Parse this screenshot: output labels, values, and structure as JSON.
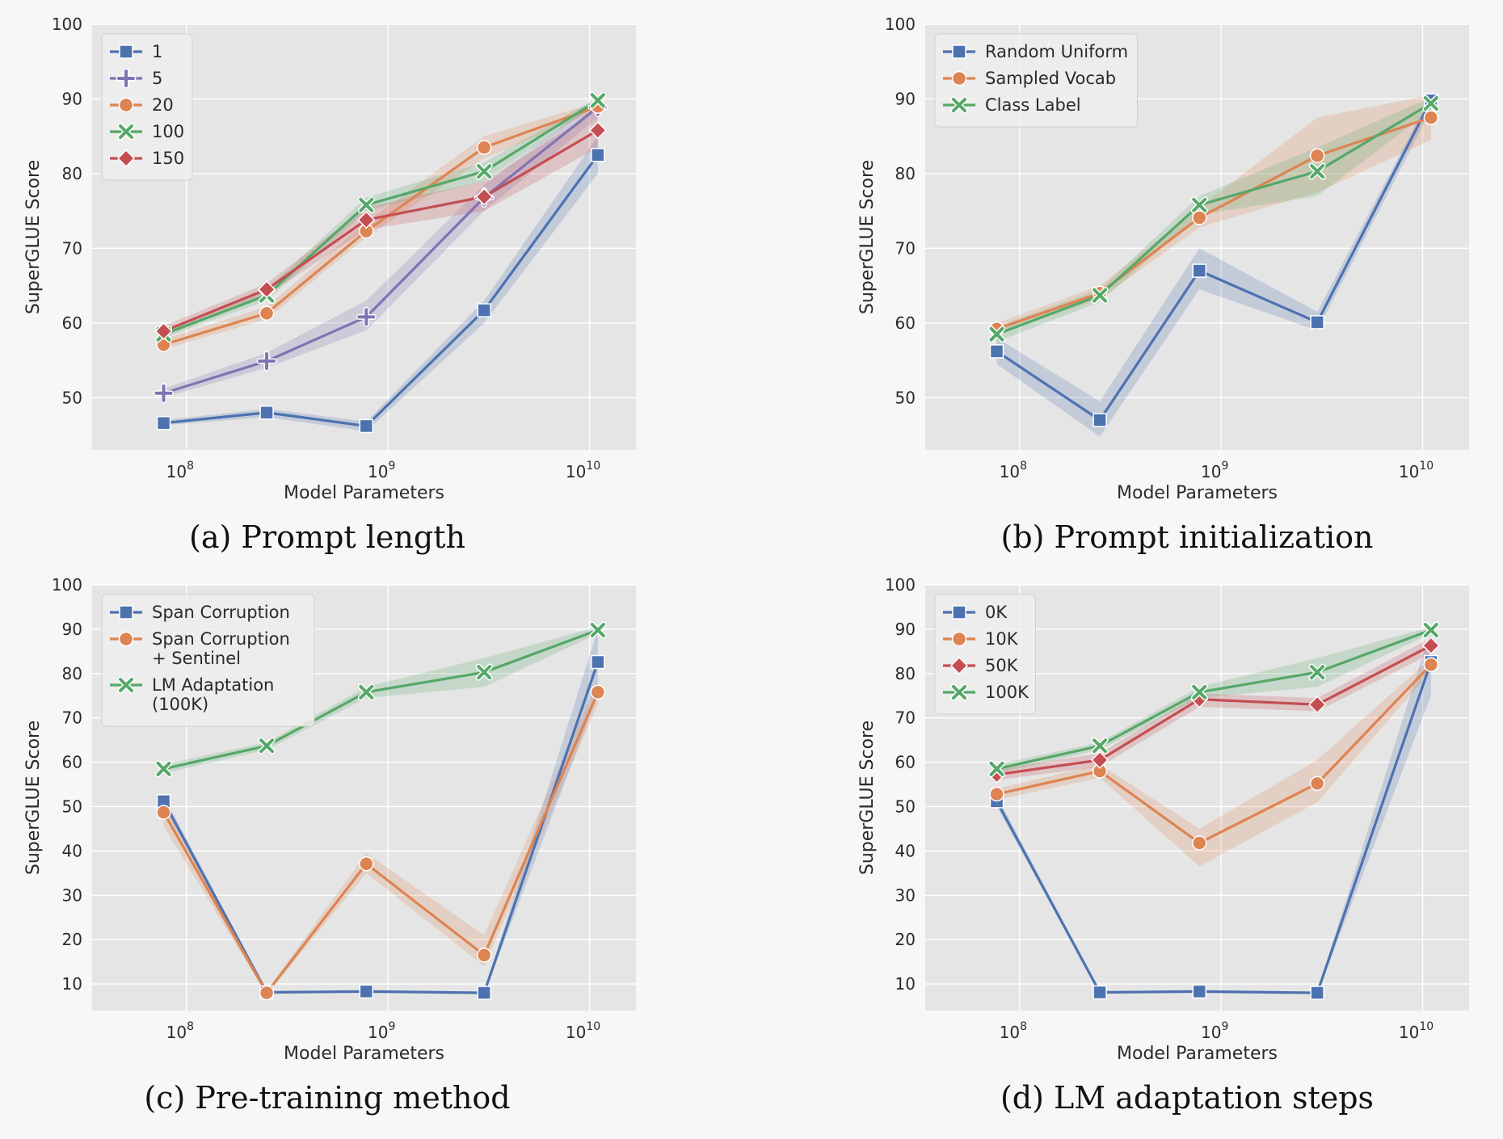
{
  "chart_data": [
    {
      "type": "line",
      "caption": "(a) Prompt length",
      "xlabel": "Model Parameters",
      "ylabel": "SuperGLUE Score",
      "xscale": "log",
      "x": [
        77000000,
        250000000,
        780000000,
        3000000000,
        11000000000
      ],
      "xticks": [
        {
          "value": 100000000,
          "base": "10",
          "exp": "8"
        },
        {
          "value": 1000000000,
          "base": "10",
          "exp": "9"
        },
        {
          "value": 10000000000,
          "base": "10",
          "exp": "10"
        }
      ],
      "ylim": [
        43,
        100
      ],
      "yticks": [
        50,
        60,
        70,
        80,
        90,
        100
      ],
      "grid": true,
      "legend": "top-left",
      "series": [
        {
          "name": "1",
          "color": "#4c72b0",
          "marker": "square",
          "values": [
            46.6,
            48.0,
            46.2,
            61.7,
            82.5
          ],
          "band": [
            [
              46.3,
              47.0
            ],
            [
              47.4,
              48.5
            ],
            [
              45.5,
              46.8
            ],
            [
              60.0,
              63.0
            ],
            [
              80.0,
              85.0
            ]
          ]
        },
        {
          "name": "5",
          "color": "#8172b3",
          "marker": "plus",
          "values": [
            50.6,
            54.9,
            60.8,
            76.8,
            88.9
          ],
          "band": [
            [
              50.0,
              51.2
            ],
            [
              54.0,
              56.0
            ],
            [
              59.0,
              63.0
            ],
            [
              75.0,
              78.5
            ],
            [
              87.5,
              90.0
            ]
          ]
        },
        {
          "name": "20",
          "color": "#dd8452",
          "marker": "circle",
          "values": [
            57.1,
            61.3,
            72.3,
            83.5,
            89.0
          ],
          "band": [
            [
              56.5,
              57.8
            ],
            [
              60.5,
              62.2
            ],
            [
              71.5,
              73.5
            ],
            [
              82.0,
              85.0
            ],
            [
              88.5,
              89.6
            ]
          ]
        },
        {
          "name": "100",
          "color": "#55a868",
          "marker": "x",
          "values": [
            58.5,
            63.7,
            75.8,
            80.3,
            89.8
          ],
          "band": [
            [
              58.0,
              59.0
            ],
            [
              63.0,
              64.5
            ],
            [
              75.0,
              76.8
            ],
            [
              79.0,
              81.5
            ],
            [
              89.4,
              90.2
            ]
          ]
        },
        {
          "name": "150",
          "color": "#c44e52",
          "marker": "diamond",
          "values": [
            58.9,
            64.5,
            73.8,
            76.9,
            85.8
          ],
          "band": [
            [
              58.2,
              59.6
            ],
            [
              63.7,
              65.3
            ],
            [
              72.5,
              75.5
            ],
            [
              75.0,
              79.0
            ],
            [
              83.5,
              88.5
            ]
          ]
        }
      ]
    },
    {
      "type": "line",
      "caption": "(b) Prompt initialization",
      "xlabel": "Model Parameters",
      "ylabel": "SuperGLUE Score",
      "xscale": "log",
      "x": [
        77000000,
        250000000,
        780000000,
        3000000000,
        11000000000
      ],
      "xticks": [
        {
          "value": 100000000,
          "base": "10",
          "exp": "8"
        },
        {
          "value": 1000000000,
          "base": "10",
          "exp": "9"
        },
        {
          "value": 10000000000,
          "base": "10",
          "exp": "10"
        }
      ],
      "ylim": [
        43,
        100
      ],
      "yticks": [
        50,
        60,
        70,
        80,
        90,
        100
      ],
      "grid": true,
      "legend": "top-left",
      "series": [
        {
          "name": "Random Uniform",
          "color": "#4c72b0",
          "marker": "square",
          "values": [
            56.2,
            47.0,
            67.0,
            60.1,
            89.8
          ],
          "band": [
            [
              54.5,
              58.0
            ],
            [
              44.8,
              49.5
            ],
            [
              64.5,
              70.0
            ],
            [
              59.0,
              61.5
            ],
            [
              88.5,
              90.5
            ]
          ]
        },
        {
          "name": "Sampled Vocab",
          "color": "#dd8452",
          "marker": "circle",
          "values": [
            59.2,
            64.0,
            74.1,
            82.4,
            87.5
          ],
          "band": [
            [
              58.5,
              60.0
            ],
            [
              63.2,
              65.0
            ],
            [
              72.8,
              75.5
            ],
            [
              77.5,
              87.5
            ],
            [
              84.5,
              90.5
            ]
          ]
        },
        {
          "name": "Class Label",
          "color": "#55a868",
          "marker": "x",
          "values": [
            58.5,
            63.7,
            75.8,
            80.3,
            89.4
          ],
          "band": [
            [
              57.5,
              59.5
            ],
            [
              62.8,
              64.5
            ],
            [
              74.5,
              77.0
            ],
            [
              77.0,
              83.5
            ],
            [
              88.5,
              90.2
            ]
          ]
        }
      ]
    },
    {
      "type": "line",
      "caption": "(c) Pre-training method",
      "xlabel": "Model Parameters",
      "ylabel": "SuperGLUE Score",
      "xscale": "log",
      "x": [
        77000000,
        250000000,
        780000000,
        3000000000,
        11000000000
      ],
      "xticks": [
        {
          "value": 100000000,
          "base": "10",
          "exp": "8"
        },
        {
          "value": 1000000000,
          "base": "10",
          "exp": "9"
        },
        {
          "value": 10000000000,
          "base": "10",
          "exp": "10"
        }
      ],
      "ylim": [
        4,
        100
      ],
      "yticks": [
        10,
        20,
        30,
        40,
        50,
        60,
        70,
        80,
        90,
        100
      ],
      "grid": true,
      "legend": "top-left",
      "series": [
        {
          "name": "Span Corruption",
          "color": "#4c72b0",
          "marker": "square",
          "values": [
            51.2,
            8.1,
            8.3,
            8.0,
            82.6
          ],
          "band": [
            [
              50.0,
              52.5
            ],
            [
              7.8,
              8.4
            ],
            [
              8.0,
              8.6
            ],
            [
              7.7,
              8.3
            ],
            [
              75.0,
              90.0
            ]
          ]
        },
        {
          "name": "Span Corruption\n+ Sentinel",
          "color": "#dd8452",
          "marker": "circle",
          "values": [
            48.7,
            8.0,
            37.1,
            16.5,
            75.8
          ],
          "band": [
            [
              45.5,
              51.5
            ],
            [
              7.5,
              8.5
            ],
            [
              35.0,
              39.5
            ],
            [
              14.0,
              21.0
            ],
            [
              73.0,
              78.5
            ]
          ]
        },
        {
          "name": "LM Adaptation\n(100K)",
          "color": "#55a868",
          "marker": "x",
          "values": [
            58.5,
            63.7,
            75.8,
            80.3,
            89.8
          ],
          "band": [
            [
              57.5,
              59.5
            ],
            [
              62.8,
              64.5
            ],
            [
              74.5,
              77.0
            ],
            [
              77.0,
              83.5
            ],
            [
              89.0,
              90.5
            ]
          ]
        }
      ]
    },
    {
      "type": "line",
      "caption": "(d) LM adaptation steps",
      "xlabel": "Model Parameters",
      "ylabel": "SuperGLUE Score",
      "xscale": "log",
      "x": [
        77000000,
        250000000,
        780000000,
        3000000000,
        11000000000
      ],
      "xticks": [
        {
          "value": 100000000,
          "base": "10",
          "exp": "8"
        },
        {
          "value": 1000000000,
          "base": "10",
          "exp": "9"
        },
        {
          "value": 10000000000,
          "base": "10",
          "exp": "10"
        }
      ],
      "ylim": [
        4,
        100
      ],
      "yticks": [
        10,
        20,
        30,
        40,
        50,
        60,
        70,
        80,
        90,
        100
      ],
      "grid": true,
      "legend": "top-left",
      "series": [
        {
          "name": "0K",
          "color": "#4c72b0",
          "marker": "square",
          "values": [
            51.2,
            8.1,
            8.3,
            8.0,
            82.6
          ],
          "band": [
            [
              50.0,
              52.5
            ],
            [
              7.8,
              8.4
            ],
            [
              8.0,
              8.6
            ],
            [
              7.7,
              8.3
            ],
            [
              75.0,
              90.0
            ]
          ]
        },
        {
          "name": "10K",
          "color": "#dd8452",
          "marker": "circle",
          "values": [
            52.8,
            58.0,
            41.8,
            55.2,
            82.0
          ],
          "band": [
            [
              51.5,
              54.0
            ],
            [
              56.5,
              59.5
            ],
            [
              36.5,
              45.0
            ],
            [
              51.0,
              60.5
            ],
            [
              80.5,
              83.5
            ]
          ]
        },
        {
          "name": "50K",
          "color": "#c44e52",
          "marker": "diamond",
          "values": [
            57.2,
            60.5,
            74.2,
            73.0,
            86.3
          ],
          "band": [
            [
              56.0,
              58.5
            ],
            [
              59.0,
              62.0
            ],
            [
              72.5,
              75.5
            ],
            [
              71.5,
              74.5
            ],
            [
              84.5,
              88.0
            ]
          ]
        },
        {
          "name": "100K",
          "color": "#55a868",
          "marker": "x",
          "values": [
            58.5,
            63.7,
            75.8,
            80.3,
            89.8
          ],
          "band": [
            [
              57.5,
              59.5
            ],
            [
              62.8,
              64.5
            ],
            [
              74.5,
              77.0
            ],
            [
              77.0,
              83.5
            ],
            [
              89.0,
              90.5
            ]
          ]
        }
      ]
    }
  ]
}
